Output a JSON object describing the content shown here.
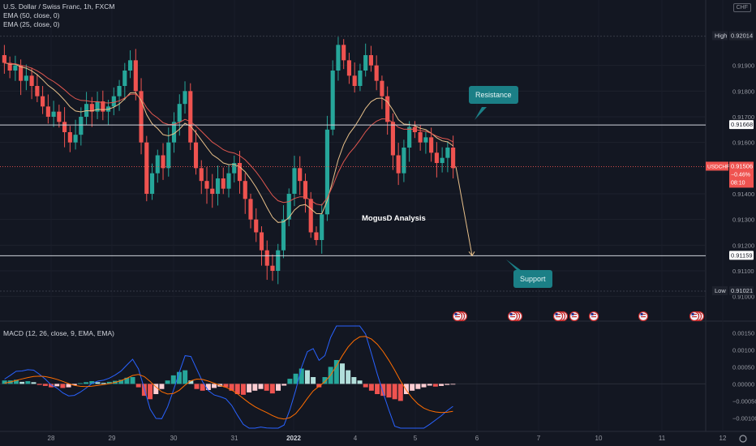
{
  "legend": {
    "symbol": "U.S. Dollar / Swiss Franc, 1h, FXCM",
    "ema50": "EMA (50, close, 0)",
    "ema25": "EMA (25, close, 0)",
    "macd": "MACD (12, 26, close, 9, EMA, EMA)"
  },
  "currency_box": "CHF",
  "price_axis": {
    "ticks": [
      "0.91900",
      "0.91800",
      "0.91700",
      "0.91600",
      "0.91400",
      "0.91300",
      "0.91200",
      "0.91100",
      "0.91000"
    ],
    "high_label": "High",
    "high_value": "0.92014",
    "low_label": "Low",
    "low_value": "0.91021",
    "resistance_value": "0.91668",
    "support_value": "0.91159",
    "symbol_badge": "USDCHF",
    "last_price": "0.91506",
    "change": "−0.46%",
    "countdown": "08:10"
  },
  "macd_axis": {
    "ticks": [
      "0.00150",
      "0.00100",
      "0.00050",
      "0.00000",
      "−0.00050",
      "−0.00100"
    ]
  },
  "time_axis": {
    "ticks": [
      "28",
      "29",
      "30",
      "31",
      "2022",
      "4",
      "5",
      "6",
      "7",
      "10",
      "11",
      "12"
    ]
  },
  "annotations": {
    "resistance": "Resistance",
    "support": "Support",
    "watermark": "MogusD Analysis"
  },
  "colors": {
    "background": "#131722",
    "up": "#26a69a",
    "down": "#ef5350",
    "ema50": "#e0574f",
    "ema25": "#e8c08a",
    "macd_line": "#2962ff",
    "signal_line": "#ff6d00",
    "callout": "#1b7f86"
  },
  "chart_data": {
    "type": "candlestick",
    "title": "U.S. Dollar / Swiss Franc, 1h, FXCM",
    "ylim": [
      0.9098,
      0.9206
    ],
    "levels": {
      "resistance": 0.91668,
      "support": 0.91159,
      "high": 0.92014,
      "low": 0.91021,
      "last": 0.91506
    },
    "price_path": [
      0.9191,
      0.9188,
      0.919,
      0.9184,
      0.9186,
      0.9182,
      0.9178,
      0.9174,
      0.917,
      0.9172,
      0.9168,
      0.9164,
      0.916,
      0.9163,
      0.917,
      0.9175,
      0.9172,
      0.9176,
      0.9172,
      0.9174,
      0.9178,
      0.9182,
      0.9188,
      0.9192,
      0.918,
      0.916,
      0.914,
      0.9148,
      0.9155,
      0.915,
      0.916,
      0.9168,
      0.9175,
      0.918,
      0.916,
      0.915,
      0.9145,
      0.9142,
      0.914,
      0.9146,
      0.9142,
      0.9148,
      0.9152,
      0.9145,
      0.9138,
      0.913,
      0.9125,
      0.9118,
      0.9112,
      0.911,
      0.9118,
      0.913,
      0.914,
      0.915,
      0.9145,
      0.9138,
      0.9125,
      0.9122,
      0.9132,
      0.9165,
      0.9188,
      0.9198,
      0.9192,
      0.9186,
      0.9182,
      0.9188,
      0.9194,
      0.919,
      0.9184,
      0.9178,
      0.9168,
      0.9155,
      0.9148,
      0.9158,
      0.9166,
      0.9164,
      0.916,
      0.9162,
      0.9156,
      0.9152,
      0.9154,
      0.9158,
      0.915
    ],
    "projection": {
      "from": 0.91506,
      "to": 0.91159
    },
    "macd_ylim": [
      -0.0013,
      0.0017
    ],
    "macd_hist": [
      0.0001,
      0.0001,
      0.00012,
      6e-05,
      8e-05,
      5e-05,
      -3e-05,
      -6e-05,
      -0.0001,
      -7e-05,
      -0.00012,
      -0.0001,
      -4e-05,
      2e-05,
      5e-05,
      8e-05,
      5e-05,
      3e-05,
      6e-05,
      9e-05,
      0.00012,
      0.00018,
      0.0002,
      -0.0001,
      -0.00035,
      -0.00045,
      -0.0003,
      -0.00015,
      0.0001,
      0.00025,
      0.00035,
      0.0004,
      0.0001,
      -0.00015,
      -0.0002,
      -0.00018,
      -0.00012,
      -8e-05,
      -0.0001,
      -0.0002,
      -0.0003,
      -0.00032,
      -0.00025,
      -0.0002,
      -0.00015,
      -0.0002,
      -0.00028,
      -0.0002,
      -5e-05,
      0.00015,
      0.0003,
      0.00045,
      0.0004,
      0.0002,
      -0.0001,
      0.0002,
      0.0005,
      0.0007,
      0.0006,
      0.0004,
      0.0002,
      0.0001,
      -0.0001,
      -0.0002,
      -0.0003,
      -0.00035,
      -0.0004,
      -0.00045,
      -0.0005,
      -0.0003,
      -0.0002,
      -0.00015,
      -0.0001,
      -5e-05,
      -8e-05,
      -6e-05,
      -3e-05,
      -2e-05
    ]
  }
}
